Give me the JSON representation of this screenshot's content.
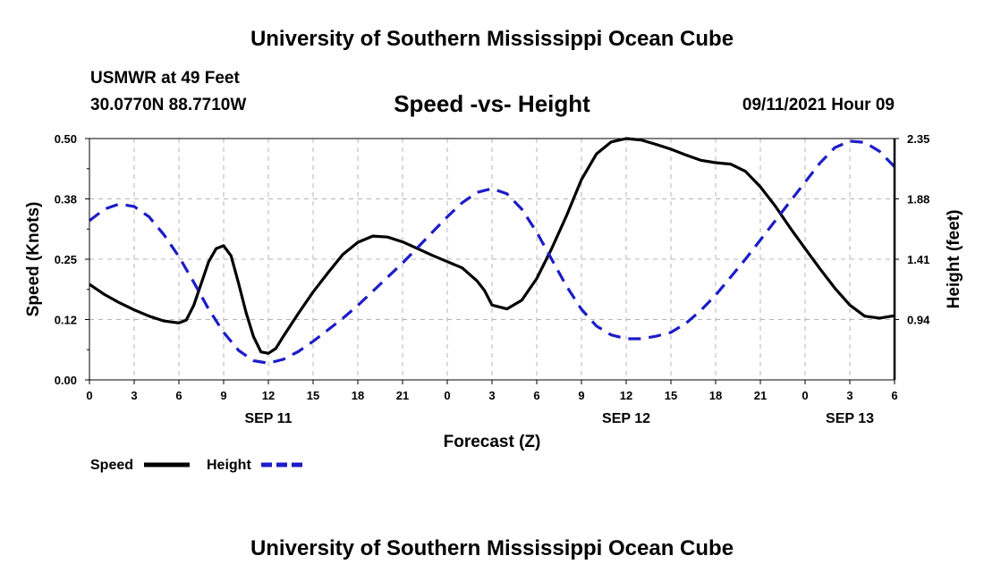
{
  "header": {
    "title": "University of Southern Mississippi Ocean Cube",
    "station": "USMWR at 49 Feet",
    "coords": "30.0770N  88.7710W",
    "subtitle": "Speed -vs- Height",
    "datetime": "09/11/2021 Hour 09"
  },
  "footer": {
    "title": "University of Southern Mississippi Ocean Cube"
  },
  "colors": {
    "speed": "#000000",
    "height": "#1c1cc8",
    "grid": "#b4b4b4"
  },
  "chart_data": {
    "type": "line",
    "title": "Speed -vs- Height",
    "xlabel": "Forecast (Z)",
    "ylabel": "Speed (Knots)",
    "y2label": "Height (feet)",
    "xlim": [
      0,
      54
    ],
    "ylim": [
      0,
      0.5
    ],
    "y2lim": [
      0.47,
      2.35
    ],
    "x_ticks": [
      0,
      3,
      6,
      9,
      12,
      15,
      18,
      21,
      24,
      27,
      30,
      33,
      36,
      39,
      42,
      45,
      48,
      51,
      54
    ],
    "x_tick_labels": [
      "0",
      "3",
      "6",
      "9",
      "12",
      "15",
      "18",
      "21",
      "0",
      "3",
      "6",
      "9",
      "12",
      "15",
      "18",
      "21",
      "0",
      "3",
      "6"
    ],
    "date_labels": [
      {
        "x": 12,
        "label": "SEP 11"
      },
      {
        "x": 36,
        "label": "SEP 12"
      },
      {
        "x": 51,
        "label": "SEP 13"
      }
    ],
    "y_ticks": [
      0,
      0.125,
      0.25,
      0.375,
      0.5
    ],
    "y_tick_labels": [
      "0.00",
      "0.12",
      "0.25",
      "0.38",
      "0.50"
    ],
    "y2_ticks": [
      0.94,
      1.41,
      1.88,
      2.35
    ],
    "y2_tick_labels": [
      "0.94",
      "1.41",
      "1.88",
      "2.35"
    ],
    "grid": true,
    "legend_position": "bottom-left",
    "series": [
      {
        "name": "Speed",
        "axis": "left",
        "style": "solid",
        "x": [
          0,
          1,
          2,
          3,
          4,
          5,
          6,
          6.5,
          7,
          7.5,
          8,
          8.5,
          9,
          9.5,
          10,
          10.5,
          11,
          11.5,
          12,
          12.5,
          13,
          14,
          15,
          16,
          17,
          18,
          19,
          20,
          21,
          22,
          23,
          24,
          25,
          26,
          26.5,
          27,
          28,
          29,
          30,
          31,
          32,
          33,
          34,
          35,
          36,
          37,
          38,
          39,
          40,
          41,
          42,
          43,
          44,
          45,
          46,
          47,
          48,
          49,
          50,
          51,
          52,
          53,
          54
        ],
        "values": [
          0.198,
          0.177,
          0.16,
          0.145,
          0.132,
          0.122,
          0.118,
          0.124,
          0.155,
          0.2,
          0.245,
          0.272,
          0.278,
          0.257,
          0.2,
          0.14,
          0.09,
          0.058,
          0.055,
          0.065,
          0.09,
          0.137,
          0.182,
          0.222,
          0.26,
          0.285,
          0.298,
          0.296,
          0.286,
          0.272,
          0.258,
          0.245,
          0.232,
          0.205,
          0.185,
          0.155,
          0.147,
          0.165,
          0.21,
          0.272,
          0.34,
          0.415,
          0.468,
          0.493,
          0.5,
          0.497,
          0.488,
          0.478,
          0.466,
          0.455,
          0.45,
          0.447,
          0.432,
          0.4,
          0.36,
          0.315,
          0.272,
          0.23,
          0.19,
          0.155,
          0.132,
          0.128,
          0.133
        ]
      },
      {
        "name": "Height",
        "axis": "right",
        "style": "dashed",
        "x": [
          0,
          1,
          2,
          3,
          4,
          5,
          6,
          7,
          8,
          9,
          10,
          11,
          12,
          13,
          14,
          15,
          16,
          17,
          18,
          19,
          20,
          21,
          22,
          23,
          24,
          25,
          26,
          27,
          28,
          29,
          30,
          31,
          32,
          33,
          34,
          35,
          36,
          37,
          38,
          39,
          40,
          41,
          42,
          43,
          44,
          45,
          46,
          47,
          48,
          49,
          50,
          51,
          52,
          53,
          54
        ],
        "values": [
          1.71,
          1.8,
          1.84,
          1.82,
          1.74,
          1.6,
          1.43,
          1.23,
          1.02,
          0.84,
          0.7,
          0.62,
          0.6,
          0.63,
          0.69,
          0.77,
          0.86,
          0.95,
          1.05,
          1.16,
          1.27,
          1.38,
          1.5,
          1.62,
          1.74,
          1.85,
          1.93,
          1.96,
          1.92,
          1.8,
          1.62,
          1.41,
          1.2,
          1.02,
          0.89,
          0.82,
          0.79,
          0.79,
          0.81,
          0.84,
          0.91,
          1.01,
          1.13,
          1.27,
          1.41,
          1.56,
          1.71,
          1.86,
          2.01,
          2.16,
          2.28,
          2.33,
          2.32,
          2.25,
          2.13
        ]
      }
    ]
  }
}
